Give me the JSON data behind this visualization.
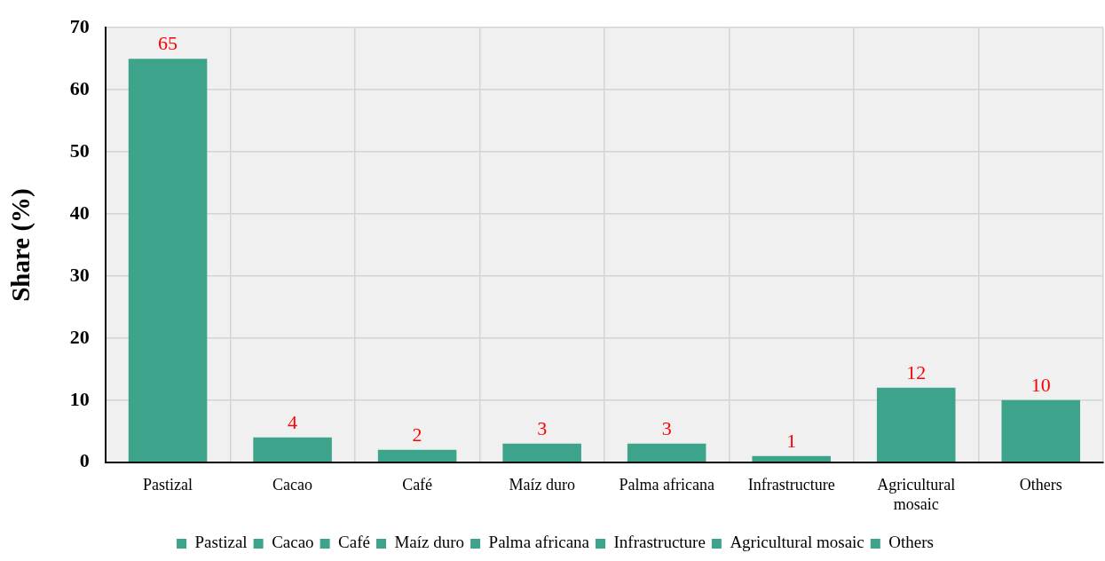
{
  "chart_data": {
    "type": "bar",
    "ylabel": "Share (%)",
    "categories": [
      "Pastizal",
      "Cacao",
      "Café",
      "Maíz duro",
      "Palma africana",
      "Infrastructure",
      "Agricultural mosaic",
      "Others"
    ],
    "series": [
      {
        "name": "Pastizal",
        "color": "#3da38a",
        "values": [
          65,
          null,
          null,
          null,
          null,
          null,
          null,
          null
        ]
      },
      {
        "name": "Cacao",
        "color": "#3da38a",
        "values": [
          null,
          4,
          null,
          null,
          null,
          null,
          null,
          null
        ]
      },
      {
        "name": "Café",
        "color": "#3da38a",
        "values": [
          null,
          null,
          2,
          null,
          null,
          null,
          null,
          null
        ]
      },
      {
        "name": "Maíz duro",
        "color": "#3da38a",
        "values": [
          null,
          null,
          null,
          3,
          null,
          null,
          null,
          null
        ]
      },
      {
        "name": "Palma africana",
        "color": "#3da38a",
        "values": [
          null,
          null,
          null,
          null,
          3,
          null,
          null,
          null
        ]
      },
      {
        "name": "Infrastructure",
        "color": "#3da38a",
        "values": [
          null,
          null,
          null,
          null,
          null,
          1,
          null,
          null
        ]
      },
      {
        "name": "Agricultural mosaic",
        "color": "#3da38a",
        "values": [
          null,
          null,
          null,
          null,
          null,
          null,
          12,
          null
        ]
      },
      {
        "name": "Others",
        "color": "#3da38a",
        "values": [
          null,
          null,
          null,
          null,
          null,
          null,
          null,
          10
        ]
      }
    ],
    "ylim": [
      0,
      70
    ],
    "yticks": [
      0,
      10,
      20,
      30,
      40,
      50,
      60,
      70
    ],
    "grid": true,
    "legend": "bottom",
    "data_labels": true
  }
}
